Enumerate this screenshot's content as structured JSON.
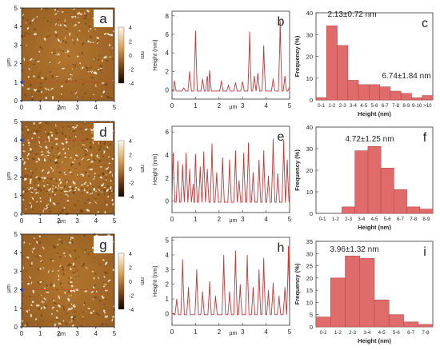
{
  "afm": [
    {
      "letter": "a",
      "scan_line_y": 1,
      "x_ticks": [
        "0",
        "1",
        "2",
        "3",
        "4",
        "5"
      ],
      "y_ticks": [
        "0",
        "1",
        "2",
        "3",
        "4",
        "5"
      ],
      "axis_unit": "µm",
      "colorbar_ticks": [
        "4",
        "2",
        "0",
        "-2",
        "-4"
      ],
      "colorbar_unit": "nm"
    },
    {
      "letter": "d",
      "scan_line_y": 4,
      "x_ticks": [
        "0",
        "1",
        "2",
        "3",
        "4",
        "5"
      ],
      "y_ticks": [
        "0",
        "1",
        "2",
        "3",
        "4",
        "5"
      ],
      "axis_unit": "µm",
      "colorbar_ticks": [
        "4",
        "2",
        "0",
        "-2",
        "-4"
      ],
      "colorbar_unit": "nm"
    },
    {
      "letter": "g",
      "scan_line_y": 2,
      "x_ticks": [
        "0",
        "1",
        "2",
        "3",
        "4",
        "5"
      ],
      "y_ticks": [
        "0",
        "1",
        "2",
        "3",
        "4",
        "5"
      ],
      "axis_unit": "µm",
      "colorbar_ticks": [
        "4",
        "2",
        "0",
        "-2",
        "-4"
      ],
      "colorbar_unit": "nm"
    }
  ],
  "colors": {
    "profile": "#c0393b",
    "bar": "#e06b6b",
    "bar_edge": "#b84a4a",
    "scan_line": "#d13a2a",
    "marker": "#3b5bd6"
  },
  "chart_data": [
    {
      "panel": "b",
      "type": "line",
      "xlabel": "µm",
      "ylabel": "Height (nm)",
      "xlim": [
        0,
        5
      ],
      "ylim": [
        -1,
        8.5
      ],
      "x_ticks": [
        "0",
        "1",
        "2",
        "3",
        "4",
        "5"
      ],
      "y_ticks": [
        "0",
        "2",
        "4",
        "6",
        "8"
      ],
      "x": [
        0,
        0.1,
        0.5,
        0.75,
        1.0,
        1.3,
        1.5,
        1.6,
        2.1,
        2.4,
        2.7,
        3.0,
        3.3,
        3.5,
        3.65,
        3.9,
        4.3,
        4.6,
        4.8,
        5.0
      ],
      "y": [
        0,
        1.0,
        0.2,
        2.0,
        6.4,
        1.2,
        1.5,
        2.1,
        1.0,
        0.5,
        0.8,
        0.9,
        6.3,
        1.5,
        1.8,
        4.8,
        1.2,
        7.5,
        1.5,
        0.3
      ]
    },
    {
      "panel": "c",
      "type": "bar",
      "xlabel": "Height (nm)",
      "ylabel": "Frequency (%)",
      "ylim": [
        0,
        40
      ],
      "y_ticks": [
        "0",
        "10",
        "20",
        "30",
        "40"
      ],
      "categories": [
        "0-1",
        "1-2",
        "2-3",
        "3-4",
        "4-5",
        "5-6",
        "6-7",
        "7-8",
        "8-9",
        "9-10",
        ">10"
      ],
      "values": [
        1,
        34,
        25,
        9,
        7,
        7,
        6,
        4,
        3,
        1,
        2
      ],
      "annotations": [
        "2.13±0.72 nm",
        "6.74±1.84 nm"
      ]
    },
    {
      "panel": "e",
      "type": "line",
      "xlabel": "µm",
      "ylabel": "Height (nm)",
      "xlim": [
        0,
        5
      ],
      "ylim": [
        -1,
        6.5
      ],
      "x_ticks": [
        "0",
        "1",
        "2",
        "3",
        "4",
        "5"
      ],
      "y_ticks": [
        "0",
        "2",
        "4",
        "6"
      ],
      "x": [
        0.05,
        0.25,
        0.45,
        0.6,
        0.75,
        0.9,
        1.0,
        1.2,
        1.35,
        1.5,
        1.7,
        1.9,
        2.15,
        2.45,
        2.7,
        2.85,
        3.05,
        3.25,
        3.45,
        3.7,
        3.9,
        4.1,
        4.3,
        4.5,
        4.75,
        4.9
      ],
      "y": [
        4.2,
        3.5,
        3.2,
        4.2,
        2.8,
        1.5,
        4.1,
        3.0,
        4.3,
        2.8,
        5.0,
        2.5,
        3.8,
        3.6,
        4.4,
        1.8,
        4.2,
        5.1,
        2.5,
        3.6,
        4.4,
        2.2,
        5.4,
        2.4,
        5.3,
        3.6
      ]
    },
    {
      "panel": "f",
      "type": "bar",
      "xlabel": "Height (nm)",
      "ylabel": "Frequency (%)",
      "ylim": [
        0,
        40
      ],
      "y_ticks": [
        "0",
        "10",
        "20",
        "30",
        "40"
      ],
      "categories": [
        "0-1",
        "1-2",
        "2-3",
        "3-4",
        "4-5",
        "5-6",
        "6-7",
        "7-8",
        "8-9"
      ],
      "values": [
        0,
        0,
        3,
        29,
        31,
        21,
        11,
        3,
        2
      ],
      "annotations": [
        "4.72±1.25 nm"
      ]
    },
    {
      "panel": "h",
      "type": "line",
      "xlabel": "µm",
      "ylabel": "Height (nm)",
      "xlim": [
        0,
        5
      ],
      "ylim": [
        -0.8,
        5.2
      ],
      "x_ticks": [
        "0",
        "1",
        "2",
        "3",
        "4",
        "5"
      ],
      "y_ticks": [
        "0",
        "1",
        "2",
        "3",
        "4",
        "5"
      ],
      "x": [
        0.2,
        0.45,
        0.7,
        1.05,
        1.3,
        1.6,
        1.85,
        2.2,
        2.45,
        2.7,
        2.9,
        3.2,
        3.45,
        3.7,
        3.9,
        4.1,
        4.3,
        4.55,
        4.8,
        4.95
      ],
      "y": [
        1.0,
        3.7,
        1.8,
        3.0,
        1.5,
        2.2,
        1.2,
        4.0,
        1.5,
        4.3,
        2.0,
        4.0,
        1.8,
        3.0,
        3.8,
        1.6,
        2.1,
        1.2,
        1.8,
        4.6
      ]
    },
    {
      "panel": "i",
      "type": "bar",
      "xlabel": "Height (nm)",
      "ylabel": "Frequency (%)",
      "ylim": [
        0,
        35
      ],
      "y_ticks": [
        "0",
        "5",
        "10",
        "15",
        "20",
        "25",
        "30",
        "35"
      ],
      "categories": [
        "0-1",
        "1-2",
        "2-3",
        "3-4",
        "4-5",
        "5-6",
        "6-7",
        "7-8"
      ],
      "values": [
        4,
        20,
        29,
        28,
        11,
        5,
        2,
        1
      ],
      "annotations": [
        "3.96±1.32 nm"
      ]
    }
  ]
}
